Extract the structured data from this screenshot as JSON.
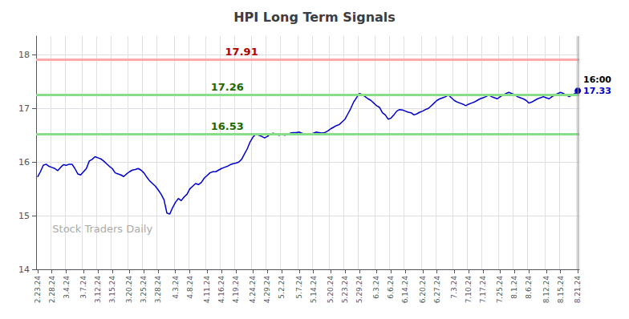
{
  "chart_data": {
    "type": "line",
    "title": "HPI Long Term Signals",
    "color": "#0000cc",
    "grid": true,
    "ylim": [
      14.0,
      18.35
    ],
    "yticks": [
      14,
      15,
      16,
      17,
      18
    ],
    "categories": [
      "2.23.24",
      null,
      null,
      null,
      null,
      "2.28.24",
      null,
      null,
      null,
      null,
      "3.4.24",
      null,
      null,
      null,
      null,
      null,
      "3.7.24",
      null,
      null,
      null,
      null,
      "3.12.24",
      null,
      null,
      null,
      null,
      "3.15.24",
      null,
      null,
      null,
      null,
      null,
      "3.20.24",
      null,
      null,
      null,
      null,
      "3.25.24",
      null,
      null,
      null,
      null,
      "3.28.24",
      null,
      null,
      null,
      null,
      null,
      "4.3.24",
      null,
      null,
      null,
      null,
      "4.8.24",
      null,
      null,
      null,
      null,
      null,
      "4.11.24",
      null,
      null,
      null,
      null,
      "4.16.24",
      null,
      null,
      null,
      null,
      "4.19.24",
      null,
      null,
      null,
      null,
      null,
      "4.24.24",
      null,
      null,
      null,
      null,
      "4.29.24",
      null,
      null,
      null,
      null,
      "5.2.24",
      null,
      null,
      null,
      null,
      null,
      "5.7.24",
      null,
      null,
      null,
      null,
      "5.14.24",
      null,
      null,
      null,
      null,
      null,
      "5.20.24",
      null,
      null,
      null,
      null,
      "5.23.24",
      null,
      null,
      null,
      null,
      "5.29.24",
      null,
      null,
      null,
      null,
      null,
      "6.3.24",
      null,
      null,
      null,
      null,
      "6.6.24",
      null,
      null,
      null,
      null,
      "6.14.24",
      null,
      null,
      null,
      null,
      null,
      "6.20.24",
      null,
      null,
      null,
      null,
      "6.27.24",
      null,
      null,
      null,
      null,
      null,
      "7.3.24",
      null,
      null,
      null,
      null,
      "7.10.24",
      null,
      null,
      null,
      null,
      "7.17.24",
      null,
      null,
      null,
      null,
      null,
      "7.25.24",
      null,
      null,
      null,
      null,
      "8.1.24",
      null,
      null,
      null,
      null,
      "8.6.24",
      null,
      null,
      null,
      null,
      null,
      "8.12.24",
      null,
      null,
      null,
      null,
      "8.15.24",
      null,
      null,
      null,
      null,
      null,
      "8.21.24"
    ],
    "values": [
      15.72,
      15.82,
      15.94,
      15.96,
      15.92,
      15.9,
      15.88,
      15.84,
      15.9,
      15.95,
      15.94,
      15.96,
      15.96,
      15.88,
      15.78,
      15.76,
      15.82,
      15.88,
      16.02,
      16.05,
      16.1,
      16.08,
      16.06,
      16.02,
      15.97,
      15.92,
      15.88,
      15.8,
      15.78,
      15.76,
      15.73,
      15.78,
      15.82,
      15.85,
      15.86,
      15.88,
      15.85,
      15.8,
      15.72,
      15.65,
      15.6,
      15.55,
      15.48,
      15.4,
      15.3,
      15.05,
      15.03,
      15.15,
      15.25,
      15.32,
      15.28,
      15.35,
      15.4,
      15.5,
      15.55,
      15.6,
      15.58,
      15.62,
      15.7,
      15.75,
      15.8,
      15.82,
      15.82,
      15.85,
      15.88,
      15.9,
      15.92,
      15.95,
      15.97,
      15.98,
      16.0,
      16.05,
      16.15,
      16.25,
      16.38,
      16.47,
      16.52,
      16.5,
      16.48,
      16.45,
      16.48,
      16.52,
      16.54,
      16.52,
      16.5,
      16.52,
      16.5,
      16.52,
      16.54,
      16.55,
      16.55,
      16.56,
      16.54,
      16.52,
      16.52,
      16.52,
      16.54,
      16.56,
      16.55,
      16.54,
      16.55,
      16.58,
      16.62,
      16.65,
      16.68,
      16.7,
      16.75,
      16.8,
      16.9,
      17.0,
      17.12,
      17.2,
      17.28,
      17.26,
      17.22,
      17.18,
      17.15,
      17.1,
      17.05,
      17.02,
      16.92,
      16.88,
      16.8,
      16.82,
      16.88,
      16.95,
      16.98,
      16.97,
      16.95,
      16.93,
      16.92,
      16.88,
      16.9,
      16.93,
      16.95,
      16.98,
      17.0,
      17.05,
      17.1,
      17.15,
      17.18,
      17.2,
      17.22,
      17.25,
      17.2,
      17.15,
      17.12,
      17.1,
      17.08,
      17.05,
      17.08,
      17.1,
      17.12,
      17.15,
      17.18,
      17.2,
      17.22,
      17.25,
      17.22,
      17.2,
      17.18,
      17.22,
      17.25,
      17.28,
      17.3,
      17.28,
      17.26,
      17.22,
      17.2,
      17.18,
      17.15,
      17.1,
      17.12,
      17.15,
      17.18,
      17.2,
      17.22,
      17.2,
      17.18,
      17.22,
      17.25,
      17.28,
      17.3,
      17.28,
      17.25,
      17.22,
      17.25,
      17.28,
      17.33
    ],
    "reference_lines": [
      {
        "value": 17.91,
        "label": "17.91",
        "color": "#ffaaaa",
        "label_color": "#aa0000"
      },
      {
        "value": 17.26,
        "label": "17.26",
        "color": "#88dd88",
        "label_color": "#226600"
      },
      {
        "value": 16.53,
        "label": "16.53",
        "color": "#88dd88",
        "label_color": "#226600"
      }
    ],
    "annotations": [
      {
        "text": "16:00",
        "color": "#000000"
      },
      {
        "text": "17.33",
        "color": "#0000cc"
      }
    ],
    "watermark": {
      "text": "Stock Traders Daily",
      "color": "#aaaaaa"
    }
  }
}
